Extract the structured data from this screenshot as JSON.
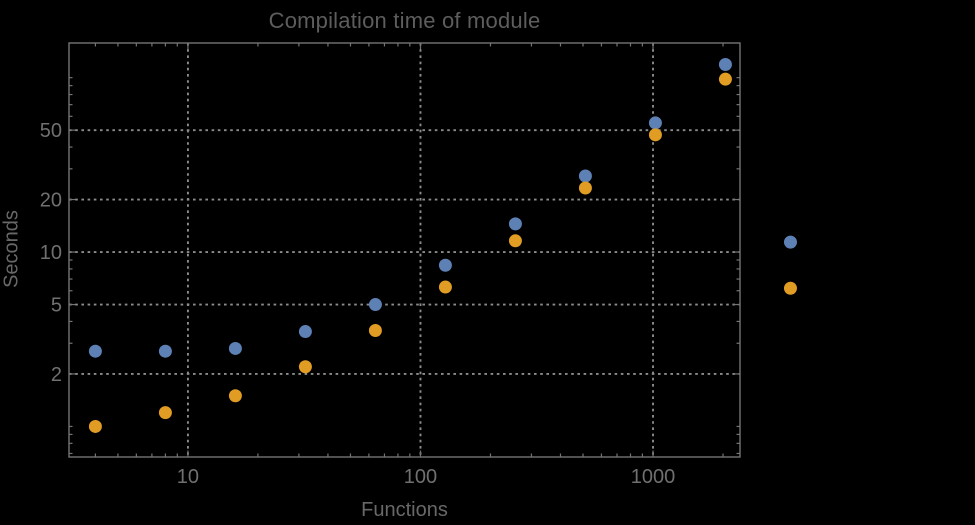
{
  "style": {
    "background": "#000000",
    "frame_color": "#747474",
    "grid_color": "#8c8c8c",
    "tick_label_color": "#707070",
    "title_color": "#5d5d5d",
    "axis_label_color": "#686868"
  },
  "chart_data": {
    "type": "scatter",
    "title": "Compilation time of module",
    "xlabel": "Functions",
    "ylabel": "Seconds",
    "xscale": "log",
    "yscale": "log",
    "grid": "dotted gridlines at labeled ticks, frame on all four sides",
    "legend_position": "right-outside (two unlabeled markers)",
    "x": [
      4,
      8,
      16,
      32,
      64,
      128,
      256,
      512,
      1024,
      2048
    ],
    "series": [
      {
        "name": "series-blue",
        "color": "#5E81B5",
        "values": [
          2.7,
          2.7,
          2.8,
          3.5,
          5.0,
          8.4,
          14.5,
          27.3,
          55,
          119
        ]
      },
      {
        "name": "series-orange",
        "color": "#E19C24",
        "values": [
          1.0,
          1.2,
          1.5,
          2.2,
          3.55,
          6.3,
          11.6,
          23.3,
          47,
          98
        ]
      }
    ],
    "offplot_markers": [
      {
        "series": 0,
        "x": 3900,
        "y": 11.4
      },
      {
        "series": 1,
        "x": 3900,
        "y": 6.2
      }
    ],
    "x_ticks": [
      {
        "v": 10,
        "label": "10"
      },
      {
        "v": 100,
        "label": "100"
      },
      {
        "v": 1000,
        "label": "1000"
      }
    ],
    "y_ticks": [
      {
        "v": 2,
        "label": "2"
      },
      {
        "v": 5,
        "label": "5"
      },
      {
        "v": 10,
        "label": "10"
      },
      {
        "v": 20,
        "label": "20"
      },
      {
        "v": 50,
        "label": "50"
      }
    ],
    "x_range": [
      3.08,
      2366
    ],
    "y_range": [
      0.668,
      158
    ]
  }
}
